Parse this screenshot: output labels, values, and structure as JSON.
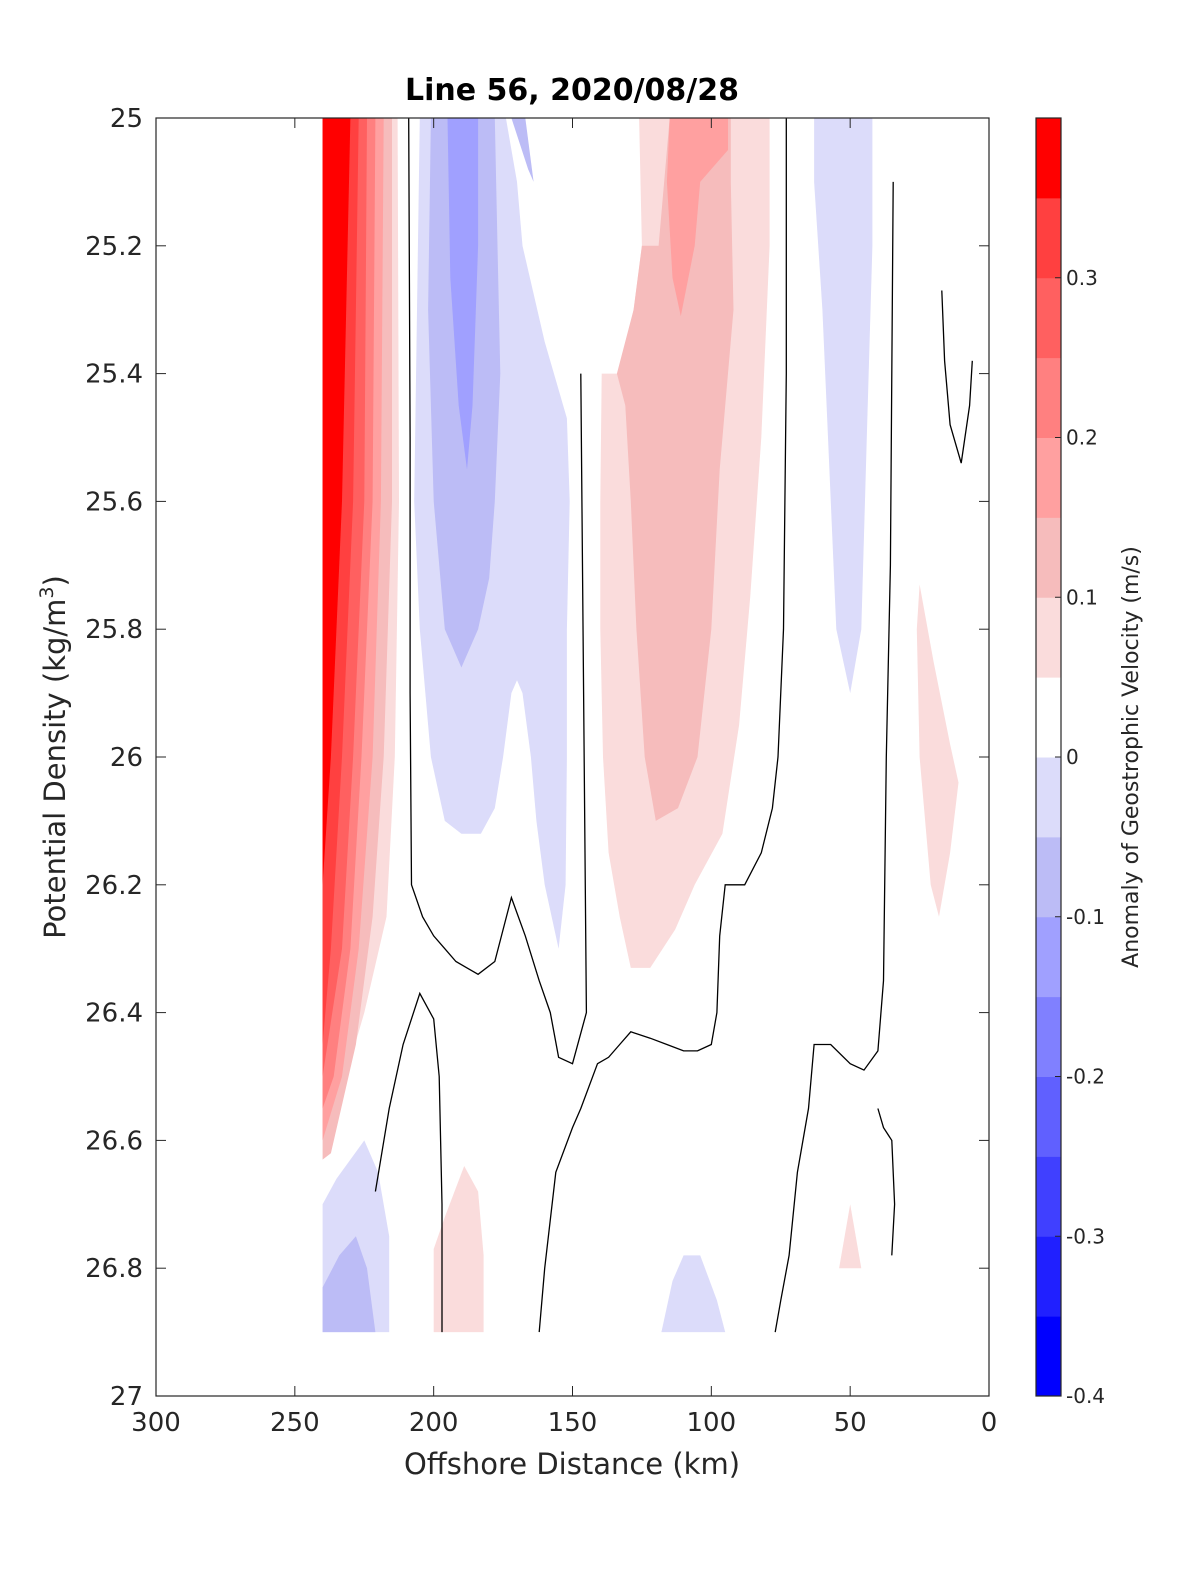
{
  "chart_data": {
    "type": "filled-contour",
    "title": "Line 56, 2020/08/28",
    "xlabel": "Offshore Distance (km)",
    "ylabel_prefix": "Potential Density (kg/m",
    "ylabel_sup": "3",
    "ylabel_suffix": ")",
    "colorbar_label": "Anomaly of Geostrophic Velocity (m/s)",
    "xlim": [
      300,
      0
    ],
    "x_reversed": true,
    "ylim": [
      25,
      27
    ],
    "y_reversed": true,
    "x_ticks": [
      "300",
      "250",
      "200",
      "150",
      "100",
      "50",
      "0"
    ],
    "y_ticks": [
      "25",
      "25.2",
      "25.4",
      "25.6",
      "25.8",
      "26",
      "26.2",
      "26.4",
      "26.6",
      "26.8",
      "27"
    ],
    "colorbar_ticks": [
      "0.3",
      "0.2",
      "0.1",
      "0",
      "-0.1",
      "-0.2",
      "-0.3",
      "-0.4"
    ],
    "colorbar_range": [
      -0.4,
      0.4
    ],
    "colorbar_levels": [
      {
        "from": -0.4,
        "to": -0.35,
        "color": "#0000ff"
      },
      {
        "from": -0.35,
        "to": -0.3,
        "color": "#2020ff"
      },
      {
        "from": -0.3,
        "to": -0.25,
        "color": "#4040ff"
      },
      {
        "from": -0.25,
        "to": -0.2,
        "color": "#6060ff"
      },
      {
        "from": -0.2,
        "to": -0.15,
        "color": "#8080ff"
      },
      {
        "from": -0.15,
        "to": -0.1,
        "color": "#a0a0ff"
      },
      {
        "from": -0.1,
        "to": -0.05,
        "color": "#bcbcf6"
      },
      {
        "from": -0.05,
        "to": 0.0,
        "color": "#dcdcfa"
      },
      {
        "from": 0.0,
        "to": 0.05,
        "color": "#ffffff"
      },
      {
        "from": 0.05,
        "to": 0.1,
        "color": "#fadcdc"
      },
      {
        "from": 0.1,
        "to": 0.15,
        "color": "#f6bcbc"
      },
      {
        "from": 0.15,
        "to": 0.2,
        "color": "#ffa0a0"
      },
      {
        "from": 0.2,
        "to": 0.25,
        "color": "#ff8080"
      },
      {
        "from": 0.25,
        "to": 0.3,
        "color": "#ff6060"
      },
      {
        "from": 0.3,
        "to": 0.35,
        "color": "#ff4040"
      },
      {
        "from": 0.35,
        "to": 0.4,
        "color": "#ff0000"
      }
    ],
    "regions": [
      {
        "level": 0.05,
        "pts": [
          [
            240,
            25
          ],
          [
            213,
            25
          ],
          [
            212.5,
            25.6
          ],
          [
            214,
            26
          ],
          [
            217,
            26.25
          ],
          [
            225,
            26.4
          ],
          [
            235,
            26.55
          ],
          [
            240,
            26.6
          ]
        ]
      },
      {
        "level": 0.1,
        "pts": [
          [
            240,
            25
          ],
          [
            215,
            25
          ],
          [
            215,
            25.6
          ],
          [
            218,
            26
          ],
          [
            222,
            26.25
          ],
          [
            228,
            26.45
          ],
          [
            237,
            26.62
          ],
          [
            240,
            26.63
          ]
        ]
      },
      {
        "level": 0.15,
        "pts": [
          [
            240,
            25
          ],
          [
            218,
            25
          ],
          [
            219,
            25.6
          ],
          [
            222,
            26
          ],
          [
            227,
            26.3
          ],
          [
            233,
            26.5
          ],
          [
            240,
            26.6
          ]
        ]
      },
      {
        "level": 0.2,
        "pts": [
          [
            240,
            25
          ],
          [
            221,
            25
          ],
          [
            222,
            25.6
          ],
          [
            226,
            26
          ],
          [
            230,
            26.3
          ],
          [
            236,
            26.5
          ],
          [
            240,
            26.55
          ]
        ]
      },
      {
        "level": 0.25,
        "pts": [
          [
            240,
            25
          ],
          [
            224,
            25
          ],
          [
            225,
            25.6
          ],
          [
            229,
            26
          ],
          [
            233,
            26.3
          ],
          [
            240,
            26.5
          ]
        ]
      },
      {
        "level": 0.3,
        "pts": [
          [
            240,
            25
          ],
          [
            227,
            25
          ],
          [
            229,
            25.6
          ],
          [
            233,
            26
          ],
          [
            237,
            26.3
          ],
          [
            240,
            26.45
          ]
        ]
      },
      {
        "level": 0.35,
        "pts": [
          [
            240,
            25
          ],
          [
            230,
            25
          ],
          [
            233,
            25.6
          ],
          [
            237,
            26
          ],
          [
            240,
            26.2
          ]
        ]
      },
      {
        "level": -0.05,
        "pts": [
          [
            205,
            25
          ],
          [
            174,
            25
          ],
          [
            170,
            25.1
          ],
          [
            168,
            25.2
          ],
          [
            160,
            25.35
          ],
          [
            152,
            25.47
          ],
          [
            151,
            25.6
          ],
          [
            152,
            25.8
          ],
          [
            152,
            26.0
          ],
          [
            152.5,
            26.2
          ],
          [
            155,
            26.3
          ],
          [
            160,
            26.2
          ],
          [
            163,
            26.1
          ],
          [
            165,
            26.0
          ],
          [
            168,
            25.9
          ],
          [
            170,
            25.88
          ],
          [
            172,
            25.9
          ],
          [
            175,
            26.0
          ],
          [
            178,
            26.08
          ],
          [
            183,
            26.12
          ],
          [
            190,
            26.12
          ],
          [
            196,
            26.1
          ],
          [
            201,
            26.0
          ],
          [
            205,
            25.8
          ],
          [
            207,
            25.6
          ],
          [
            206,
            25.3
          ]
        ]
      },
      {
        "level": -0.1,
        "pts": [
          [
            201,
            25
          ],
          [
            178,
            25
          ],
          [
            177,
            25.2
          ],
          [
            176,
            25.4
          ],
          [
            178,
            25.6
          ],
          [
            180,
            25.72
          ],
          [
            184,
            25.8
          ],
          [
            190,
            25.86
          ],
          [
            196,
            25.8
          ],
          [
            200,
            25.6
          ],
          [
            202,
            25.3
          ]
        ]
      },
      {
        "level": -0.15,
        "pts": [
          [
            195,
            25
          ],
          [
            184,
            25
          ],
          [
            184,
            25.2
          ],
          [
            186,
            25.45
          ],
          [
            188,
            25.55
          ],
          [
            191,
            25.45
          ],
          [
            194,
            25.25
          ]
        ]
      },
      {
        "level": -0.1,
        "pts": [
          [
            172,
            25
          ],
          [
            167,
            25
          ],
          [
            164,
            25.1
          ],
          [
            166,
            25.08
          ]
        ]
      },
      {
        "level": 0.05,
        "pts": [
          [
            126,
            25
          ],
          [
            79,
            25
          ],
          [
            79,
            25.2
          ],
          [
            82,
            25.5
          ],
          [
            86,
            25.75
          ],
          [
            90,
            25.95
          ],
          [
            96,
            26.12
          ],
          [
            106,
            26.2
          ],
          [
            113,
            26.27
          ],
          [
            122,
            26.33
          ],
          [
            129,
            26.33
          ],
          [
            133,
            26.25
          ],
          [
            137,
            26.15
          ],
          [
            139,
            26.0
          ],
          [
            140,
            25.8
          ],
          [
            140,
            25.6
          ],
          [
            139.5,
            25.4
          ],
          [
            133,
            25.4
          ],
          [
            128,
            25.3
          ],
          [
            125,
            25.2
          ]
        ]
      },
      {
        "level": 0.1,
        "pts": [
          [
            115,
            25
          ],
          [
            93,
            25
          ],
          [
            93,
            25.1
          ],
          [
            92,
            25.3
          ],
          [
            97,
            25.55
          ],
          [
            100,
            25.8
          ],
          [
            105,
            26.0
          ],
          [
            112,
            26.08
          ],
          [
            120,
            26.1
          ],
          [
            124,
            26.0
          ],
          [
            127,
            25.8
          ],
          [
            129,
            25.6
          ],
          [
            131,
            25.45
          ],
          [
            134,
            25.4
          ],
          [
            128,
            25.3
          ],
          [
            125,
            25.2
          ],
          [
            119,
            25.2
          ]
        ]
      },
      {
        "level": 0.15,
        "pts": [
          [
            115,
            25
          ],
          [
            94,
            25
          ],
          [
            94,
            25.05
          ],
          [
            100,
            25.08
          ],
          [
            104,
            25.1
          ],
          [
            106,
            25.2
          ],
          [
            111,
            25.31
          ],
          [
            114,
            25.25
          ],
          [
            116,
            25.1
          ]
        ]
      },
      {
        "level": -0.05,
        "pts": [
          [
            63,
            25
          ],
          [
            42,
            25
          ],
          [
            42,
            25.2
          ],
          [
            44,
            25.5
          ],
          [
            46,
            25.8
          ],
          [
            50,
            25.9
          ],
          [
            55,
            25.8
          ],
          [
            58,
            25.5
          ],
          [
            60,
            25.3
          ],
          [
            63,
            25.1
          ]
        ]
      },
      {
        "level": 0.05,
        "pts": [
          [
            25,
            25.73
          ],
          [
            20,
            25.85
          ],
          [
            14,
            25.98
          ],
          [
            11,
            26.04
          ],
          [
            14,
            26.15
          ],
          [
            18,
            26.25
          ],
          [
            21,
            26.2
          ],
          [
            25,
            26.0
          ],
          [
            26,
            25.8
          ]
        ]
      },
      {
        "level": -0.05,
        "pts": [
          [
            240,
            26.7
          ],
          [
            235,
            26.66
          ],
          [
            225,
            26.6
          ],
          [
            220,
            26.65
          ],
          [
            216,
            26.75
          ],
          [
            216,
            26.9
          ],
          [
            240,
            26.9
          ]
        ]
      },
      {
        "level": -0.1,
        "pts": [
          [
            240,
            26.83
          ],
          [
            234,
            26.78
          ],
          [
            228,
            26.75
          ],
          [
            224,
            26.8
          ],
          [
            221,
            26.9
          ],
          [
            240,
            26.9
          ]
        ]
      },
      {
        "level": 0.05,
        "pts": [
          [
            200,
            26.77
          ],
          [
            196,
            26.72
          ],
          [
            189,
            26.64
          ],
          [
            184,
            26.68
          ],
          [
            182,
            26.78
          ],
          [
            182,
            26.9
          ],
          [
            200,
            26.9
          ]
        ]
      },
      {
        "level": -0.05,
        "pts": [
          [
            118,
            26.9
          ],
          [
            114,
            26.82
          ],
          [
            110,
            26.78
          ],
          [
            104,
            26.78
          ],
          [
            98,
            26.85
          ],
          [
            95,
            26.9
          ]
        ]
      },
      {
        "level": 0.05,
        "pts": [
          [
            54,
            26.8
          ],
          [
            50,
            26.7
          ],
          [
            46,
            26.8
          ]
        ]
      }
    ],
    "contour_lines": [
      [
        [
          209,
          25
        ],
        [
          208.5,
          25.5
        ],
        [
          208.5,
          25.9
        ],
        [
          208,
          26.2
        ],
        [
          204,
          26.25
        ],
        [
          200,
          26.28
        ],
        [
          196,
          26.3
        ],
        [
          192,
          26.32
        ],
        [
          188,
          26.33
        ],
        [
          184,
          26.34
        ],
        [
          178,
          26.32
        ],
        [
          172,
          26.22
        ],
        [
          167,
          26.28
        ],
        [
          162,
          26.35
        ],
        [
          158,
          26.4
        ],
        [
          155,
          26.47
        ],
        [
          150,
          26.48
        ],
        [
          145,
          26.4
        ],
        [
          147,
          25.4
        ]
      ],
      [
        [
          221,
          26.68
        ],
        [
          216,
          26.55
        ],
        [
          211,
          26.45
        ],
        [
          205,
          26.37
        ],
        [
          200,
          26.41
        ],
        [
          198,
          26.5
        ],
        [
          197,
          26.7
        ],
        [
          197,
          26.9
        ]
      ],
      [
        [
          162,
          26.9
        ],
        [
          160,
          26.8
        ],
        [
          156,
          26.65
        ],
        [
          150,
          26.58
        ],
        [
          147,
          26.55
        ],
        [
          141,
          26.48
        ],
        [
          137,
          26.47
        ],
        [
          133,
          26.45
        ],
        [
          129,
          26.43
        ],
        [
          122,
          26.44
        ],
        [
          116,
          26.45
        ],
        [
          110,
          26.46
        ],
        [
          105,
          26.46
        ],
        [
          100,
          26.45
        ],
        [
          98,
          26.4
        ],
        [
          97,
          26.28
        ],
        [
          95,
          26.2
        ],
        [
          88,
          26.2
        ],
        [
          82,
          26.15
        ],
        [
          78,
          26.08
        ],
        [
          76,
          26.0
        ],
        [
          74,
          25.8
        ],
        [
          73,
          25.4
        ],
        [
          73,
          25.0
        ]
      ],
      [
        [
          77,
          26.9
        ],
        [
          75,
          26.85
        ],
        [
          72,
          26.78
        ],
        [
          69,
          26.65
        ],
        [
          65,
          26.55
        ],
        [
          63,
          26.45
        ],
        [
          57,
          26.45
        ],
        [
          50,
          26.48
        ],
        [
          45,
          26.49
        ],
        [
          40,
          26.46
        ],
        [
          38,
          26.35
        ],
        [
          37,
          26.0
        ],
        [
          35.5,
          25.7
        ],
        [
          35,
          25.4
        ],
        [
          34.5,
          25.1
        ]
      ],
      [
        [
          35,
          26.78
        ],
        [
          34,
          26.7
        ],
        [
          35,
          26.6
        ],
        [
          38,
          26.58
        ],
        [
          40,
          26.55
        ]
      ],
      [
        [
          17,
          25.27
        ],
        [
          16,
          25.38
        ],
        [
          14,
          25.48
        ],
        [
          10,
          25.54
        ],
        [
          7,
          25.45
        ],
        [
          6,
          25.38
        ]
      ]
    ]
  }
}
